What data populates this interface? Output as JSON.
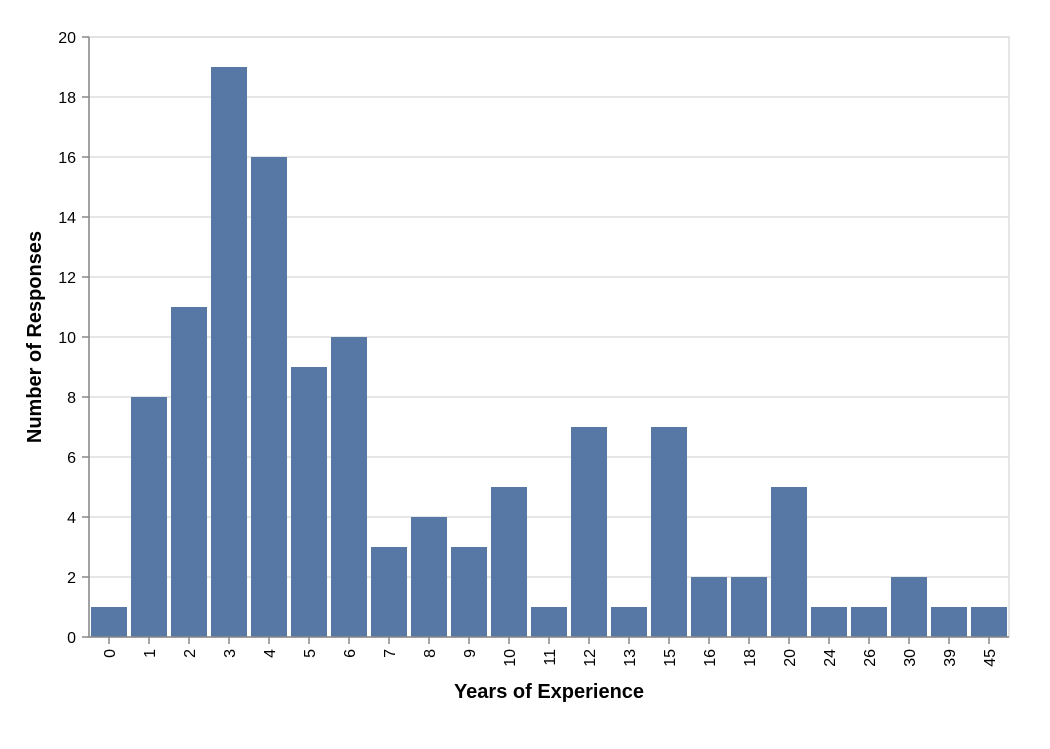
{
  "chart_data": {
    "type": "bar",
    "title": "",
    "xlabel": "Years of Experience",
    "ylabel": "Number of Responses",
    "categories": [
      "0",
      "1",
      "2",
      "3",
      "4",
      "5",
      "6",
      "7",
      "8",
      "9",
      "10",
      "11",
      "12",
      "13",
      "15",
      "16",
      "18",
      "20",
      "24",
      "26",
      "30",
      "39",
      "45"
    ],
    "values": [
      1,
      8,
      11,
      19,
      16,
      9,
      10,
      3,
      4,
      3,
      5,
      1,
      7,
      1,
      7,
      2,
      2,
      5,
      1,
      1,
      2,
      1,
      1
    ],
    "ylim": [
      0,
      20
    ],
    "yticks": [
      0,
      2,
      4,
      6,
      8,
      10,
      12,
      14,
      16,
      18,
      20
    ],
    "grid": true,
    "bar_color": "#5778a4"
  }
}
